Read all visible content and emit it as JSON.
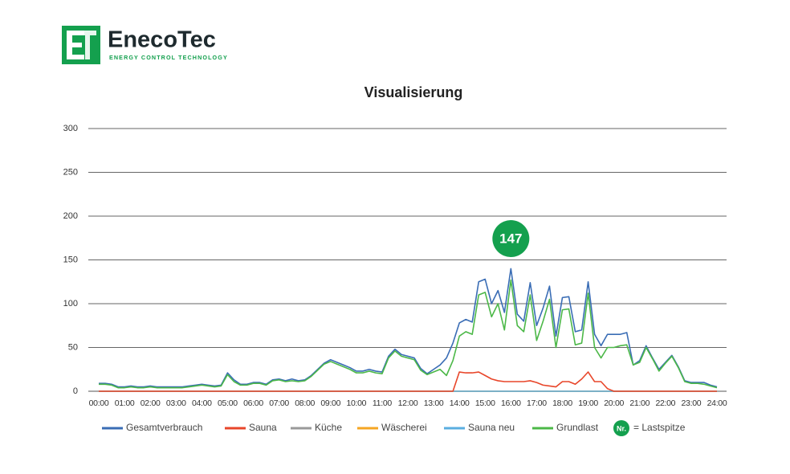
{
  "header": {
    "brand": "EnecoTec",
    "tagline": "ENERGY CONTROL TECHNOLOGY"
  },
  "chart_data": {
    "type": "line",
    "title": "Visualisierung",
    "x": [
      0,
      0.25,
      0.5,
      0.75,
      1,
      1.25,
      1.5,
      1.75,
      2,
      2.25,
      2.5,
      2.75,
      3,
      3.25,
      3.5,
      3.75,
      4,
      4.25,
      4.5,
      4.75,
      5,
      5.25,
      5.5,
      5.75,
      6,
      6.25,
      6.5,
      6.75,
      7,
      7.25,
      7.5,
      7.75,
      8,
      8.25,
      8.5,
      8.75,
      9,
      9.25,
      9.5,
      9.75,
      10,
      10.25,
      10.5,
      10.75,
      11,
      11.25,
      11.5,
      11.75,
      12,
      12.25,
      12.5,
      12.75,
      13,
      13.25,
      13.5,
      13.75,
      14,
      14.25,
      14.5,
      14.75,
      15,
      15.25,
      15.5,
      15.75,
      16,
      16.25,
      16.5,
      16.75,
      17,
      17.25,
      17.5,
      17.75,
      18,
      18.25,
      18.5,
      18.75,
      19,
      19.25,
      19.5,
      19.75,
      20,
      20.25,
      20.5,
      20.75,
      21,
      21.25,
      21.5,
      21.75,
      22,
      22.25,
      22.5,
      22.75,
      23,
      23.25,
      23.5,
      23.75,
      24
    ],
    "xlim": [
      0,
      24
    ],
    "xticks": [
      {
        "value": 0,
        "label": "00:00"
      },
      {
        "value": 1,
        "label": "01:00"
      },
      {
        "value": 2,
        "label": "02:00"
      },
      {
        "value": 3,
        "label": "03:00"
      },
      {
        "value": 4,
        "label": "04:00"
      },
      {
        "value": 5,
        "label": "05:00"
      },
      {
        "value": 6,
        "label": "06:00"
      },
      {
        "value": 7,
        "label": "07:00"
      },
      {
        "value": 8,
        "label": "08:00"
      },
      {
        "value": 9,
        "label": "09:00"
      },
      {
        "value": 10,
        "label": "10:00"
      },
      {
        "value": 11,
        "label": "11:00"
      },
      {
        "value": 12,
        "label": "12:00"
      },
      {
        "value": 13,
        "label": "13:00"
      },
      {
        "value": 14,
        "label": "14:00"
      },
      {
        "value": 15,
        "label": "15:00"
      },
      {
        "value": 16,
        "label": "16:00"
      },
      {
        "value": 17,
        "label": "17:00"
      },
      {
        "value": 18,
        "label": "18:00"
      },
      {
        "value": 19,
        "label": "19:00"
      },
      {
        "value": 20,
        "label": "20:00"
      },
      {
        "value": 21,
        "label": "21:00"
      },
      {
        "value": 22,
        "label": "22:00"
      },
      {
        "value": 23,
        "label": "23:00"
      },
      {
        "value": 24,
        "label": "24:00"
      }
    ],
    "ylim": [
      0,
      300
    ],
    "yticks": [
      0,
      50,
      100,
      150,
      200,
      250,
      300
    ],
    "grid": true,
    "series": [
      {
        "name": "Gesamtverbrauch",
        "color": "#3a6db5",
        "values": [
          9,
          9,
          8,
          5,
          5,
          6,
          5,
          5,
          6,
          5,
          5,
          5,
          5,
          5,
          6,
          7,
          8,
          7,
          6,
          7,
          21,
          13,
          8,
          8,
          10,
          10,
          8,
          13,
          14,
          12,
          14,
          12,
          13,
          18,
          25,
          32,
          36,
          33,
          30,
          27,
          23,
          23,
          25,
          23,
          22,
          40,
          48,
          42,
          40,
          38,
          26,
          20,
          25,
          30,
          38,
          55,
          78,
          82,
          79,
          125,
          128,
          100,
          115,
          90,
          140,
          88,
          80,
          124,
          75,
          95,
          120,
          63,
          107,
          108,
          68,
          70,
          125,
          65,
          52,
          65,
          65,
          65,
          67,
          30,
          35,
          52,
          38,
          25,
          33,
          41,
          28,
          12,
          10,
          10,
          10,
          7,
          5
        ]
      },
      {
        "name": "Sauna",
        "color": "#e8462a",
        "values": [
          0,
          0,
          0,
          0,
          0,
          0,
          0,
          0,
          0,
          0,
          0,
          0,
          0,
          0,
          0,
          0,
          0,
          0,
          0,
          0,
          0,
          0,
          0,
          0,
          0,
          0,
          0,
          0,
          0,
          0,
          0,
          0,
          0,
          0,
          0,
          0,
          0,
          0,
          0,
          0,
          0,
          0,
          0,
          0,
          0,
          0,
          0,
          0,
          0,
          0,
          0,
          0,
          0,
          0,
          0,
          0,
          22,
          21,
          21,
          22,
          18,
          14,
          12,
          11,
          11,
          11,
          11,
          12,
          10,
          7,
          6,
          5,
          11,
          11,
          8,
          14,
          22,
          11,
          11,
          3,
          0,
          0,
          0,
          0,
          0,
          0,
          0,
          0,
          0,
          0,
          0,
          0,
          0,
          0,
          0,
          0,
          0
        ]
      },
      {
        "name": "Küche",
        "color": "#9a9a9a",
        "values": [
          0,
          0,
          0,
          0,
          0,
          0,
          0,
          0,
          0,
          0,
          0,
          0,
          0,
          0,
          0,
          0,
          0,
          0,
          0,
          0,
          0,
          0,
          0,
          0,
          0,
          0,
          0,
          0,
          0,
          0,
          0,
          0,
          0,
          0,
          0,
          0,
          0,
          0,
          0,
          0,
          0,
          0,
          0,
          0,
          0,
          0,
          0,
          0,
          0,
          0,
          0,
          0,
          0,
          0,
          0,
          0,
          0,
          0,
          0,
          0,
          0,
          0,
          0,
          0,
          0,
          0,
          0,
          0,
          0,
          0,
          0,
          0,
          0,
          0,
          0,
          0,
          0,
          0,
          0,
          0,
          0,
          0,
          0,
          0,
          0,
          0,
          0,
          0,
          0,
          0,
          0,
          0,
          0,
          0,
          0,
          0,
          0
        ]
      },
      {
        "name": "Wäscherei",
        "color": "#f5a623",
        "values": [
          0,
          0,
          0,
          0,
          0,
          0,
          0,
          0,
          0,
          0,
          0,
          0,
          0,
          0,
          0,
          0,
          0,
          0,
          0,
          0,
          0,
          0,
          0,
          0,
          0,
          0,
          0,
          0,
          0,
          0,
          0,
          0,
          0,
          0,
          0,
          0,
          0,
          0,
          0,
          0,
          0,
          0,
          0,
          0,
          0,
          0,
          0,
          0,
          0,
          0,
          0,
          0,
          0,
          0,
          0,
          0,
          0,
          0,
          0,
          0,
          0,
          0,
          0,
          0,
          0,
          0,
          0,
          0,
          0,
          0,
          0,
          0,
          0,
          0,
          0,
          0,
          0,
          0,
          0,
          0,
          0,
          0,
          0,
          0,
          0,
          0,
          0,
          0,
          0,
          0,
          0,
          0,
          0,
          0,
          0,
          0,
          0
        ]
      },
      {
        "name": "Sauna neu",
        "color": "#5aaee0",
        "values": [
          0,
          0,
          0,
          0,
          0,
          0,
          0,
          0,
          0,
          0,
          0,
          0,
          0,
          0,
          0,
          0,
          0,
          0,
          0,
          0,
          0,
          0,
          0,
          0,
          0,
          0,
          0,
          0,
          0,
          0,
          0,
          0,
          0,
          0,
          0,
          0,
          0,
          0,
          0,
          0,
          0,
          0,
          0,
          0,
          0,
          0,
          0,
          0,
          0,
          0,
          0,
          0,
          0,
          0,
          0,
          0,
          0,
          0,
          0,
          0,
          0,
          0,
          0,
          0,
          0,
          0,
          0,
          0,
          0,
          0,
          0,
          0,
          0,
          0,
          0,
          0,
          0,
          0,
          0,
          0,
          0,
          0,
          0,
          0,
          0,
          0,
          0,
          0,
          0,
          0,
          0,
          0,
          0,
          0,
          0,
          0,
          0
        ]
      },
      {
        "name": "Grundlast",
        "color": "#4cb848",
        "values": [
          8,
          8,
          7,
          4,
          4,
          5,
          4,
          4,
          5,
          4,
          4,
          4,
          4,
          4,
          5,
          6,
          7,
          6,
          5,
          6,
          19,
          11,
          7,
          7,
          9,
          9,
          7,
          12,
          13,
          11,
          12,
          11,
          12,
          17,
          24,
          31,
          34,
          31,
          28,
          25,
          21,
          21,
          23,
          21,
          20,
          38,
          46,
          40,
          38,
          36,
          24,
          19,
          22,
          25,
          18,
          35,
          63,
          68,
          65,
          110,
          113,
          85,
          100,
          70,
          127,
          75,
          68,
          110,
          58,
          80,
          105,
          50,
          93,
          94,
          53,
          55,
          112,
          50,
          38,
          50,
          50,
          52,
          53,
          30,
          33,
          50,
          37,
          23,
          32,
          40,
          27,
          11,
          9,
          9,
          8,
          6,
          4
        ]
      }
    ],
    "annotation": {
      "label": "147",
      "x": 16
    },
    "legend_note": {
      "badge": "Nr.",
      "text": "= Lastspitze"
    }
  }
}
